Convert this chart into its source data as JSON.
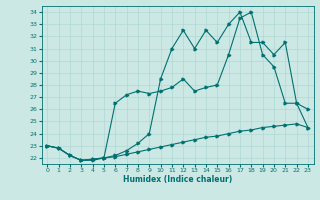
{
  "xlabel": "Humidex (Indice chaleur)",
  "bg_color": "#cce8e4",
  "line_color": "#007070",
  "grid_color": "#b0d8d4",
  "xlim": [
    -0.5,
    23.5
  ],
  "ylim": [
    21.5,
    34.5
  ],
  "xticks": [
    0,
    1,
    2,
    3,
    4,
    5,
    6,
    7,
    8,
    9,
    10,
    11,
    12,
    13,
    14,
    15,
    16,
    17,
    18,
    19,
    20,
    21,
    22,
    23
  ],
  "yticks": [
    22,
    23,
    24,
    25,
    26,
    27,
    28,
    29,
    30,
    31,
    32,
    33,
    34
  ],
  "line1_x": [
    0,
    1,
    2,
    3,
    4,
    5,
    6,
    7,
    8,
    9,
    10,
    11,
    12,
    13,
    14,
    15,
    16,
    17,
    18,
    19,
    20,
    21,
    22,
    23
  ],
  "line1_y": [
    23.0,
    22.8,
    22.2,
    21.8,
    21.8,
    22.0,
    22.1,
    22.3,
    22.5,
    22.7,
    22.9,
    23.1,
    23.3,
    23.5,
    23.7,
    23.8,
    24.0,
    24.2,
    24.3,
    24.5,
    24.6,
    24.7,
    24.8,
    24.5
  ],
  "line2_x": [
    0,
    1,
    2,
    3,
    4,
    5,
    6,
    7,
    8,
    9,
    10,
    11,
    12,
    13,
    14,
    15,
    16,
    17,
    18,
    19,
    20,
    21,
    22,
    23
  ],
  "line2_y": [
    23.0,
    22.8,
    22.2,
    21.8,
    21.9,
    22.0,
    26.5,
    27.2,
    27.5,
    27.3,
    27.5,
    27.8,
    28.5,
    27.5,
    27.8,
    28.0,
    30.5,
    33.5,
    34.0,
    30.5,
    29.5,
    26.5,
    26.5,
    26.0
  ],
  "line3_x": [
    0,
    1,
    2,
    3,
    4,
    5,
    6,
    7,
    8,
    9,
    10,
    11,
    12,
    13,
    14,
    15,
    16,
    17,
    18,
    19,
    20,
    21,
    22,
    23
  ],
  "line3_y": [
    23.0,
    22.8,
    22.2,
    21.8,
    21.9,
    22.0,
    22.2,
    22.6,
    23.2,
    24.0,
    28.5,
    31.0,
    32.5,
    31.0,
    32.5,
    31.5,
    33.0,
    34.0,
    31.5,
    31.5,
    30.5,
    31.5,
    26.5,
    24.5
  ]
}
